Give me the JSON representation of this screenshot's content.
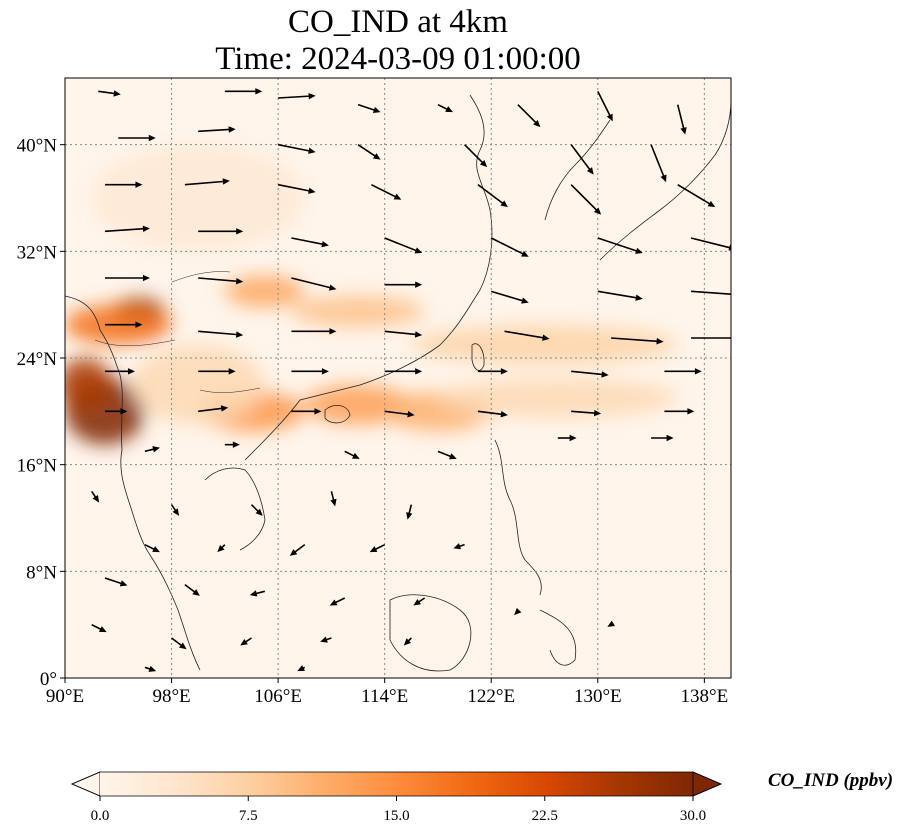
{
  "title": {
    "line1": "CO_IND at 4km",
    "line2": "Time: 2024-03-09 01:00:00"
  },
  "map": {
    "lon_range": [
      90,
      140
    ],
    "lat_range": [
      0,
      45
    ],
    "lon_ticks": [
      {
        "value": 90,
        "label": "90°E"
      },
      {
        "value": 98,
        "label": "98°E"
      },
      {
        "value": 106,
        "label": "106°E"
      },
      {
        "value": 114,
        "label": "114°E"
      },
      {
        "value": 122,
        "label": "122°E"
      },
      {
        "value": 130,
        "label": "130°E"
      },
      {
        "value": 138,
        "label": "138°E"
      }
    ],
    "lat_ticks": [
      {
        "value": 0,
        "label": "0°"
      },
      {
        "value": 8,
        "label": "8°N"
      },
      {
        "value": 16,
        "label": "16°N"
      },
      {
        "value": 24,
        "label": "24°N"
      },
      {
        "value": 32,
        "label": "32°N"
      },
      {
        "value": 40,
        "label": "40°N"
      }
    ],
    "gridlines": true,
    "concentration_plumes": [
      {
        "lon": 93.0,
        "lat": 20.0,
        "rx": 3.0,
        "ry": 2.5,
        "value": 30
      },
      {
        "lon": 91.5,
        "lat": 22.0,
        "rx": 2.0,
        "ry": 2.0,
        "value": 26
      },
      {
        "lon": 95.5,
        "lat": 27.5,
        "rx": 2.0,
        "ry": 1.0,
        "value": 30
      },
      {
        "lon": 94.0,
        "lat": 26.5,
        "rx": 4.0,
        "ry": 1.5,
        "value": 18
      },
      {
        "lon": 104.0,
        "lat": 20.0,
        "rx": 4.0,
        "ry": 1.5,
        "value": 14
      },
      {
        "lon": 112.0,
        "lat": 20.5,
        "rx": 4.0,
        "ry": 1.5,
        "value": 13
      },
      {
        "lon": 118.0,
        "lat": 20.0,
        "rx": 4.0,
        "ry": 1.5,
        "value": 11
      },
      {
        "lon": 105.0,
        "lat": 29.0,
        "rx": 3.0,
        "ry": 1.2,
        "value": 12
      },
      {
        "lon": 112.0,
        "lat": 27.5,
        "rx": 5.0,
        "ry": 1.2,
        "value": 9
      },
      {
        "lon": 126.0,
        "lat": 25.0,
        "rx": 10.0,
        "ry": 1.5,
        "value": 7
      },
      {
        "lon": 127.0,
        "lat": 21.0,
        "rx": 9.0,
        "ry": 1.5,
        "value": 6
      },
      {
        "lon": 100.0,
        "lat": 36.0,
        "rx": 8.0,
        "ry": 4.0,
        "value": 3
      },
      {
        "lon": 100.0,
        "lat": 22.0,
        "rx": 5.0,
        "ry": 3.0,
        "value": 6
      }
    ],
    "wind_vectors": [
      {
        "lon": 92.5,
        "lat": 44,
        "u": 3,
        "v": -0.4
      },
      {
        "lon": 102,
        "lat": 44,
        "u": 5,
        "v": 0
      },
      {
        "lon": 106,
        "lat": 43.5,
        "u": 5,
        "v": 0.3
      },
      {
        "lon": 112,
        "lat": 43,
        "u": 3,
        "v": -1
      },
      {
        "lon": 118,
        "lat": 43,
        "u": 2,
        "v": -1
      },
      {
        "lon": 124,
        "lat": 43,
        "u": 3,
        "v": -3
      },
      {
        "lon": 130,
        "lat": 44,
        "u": 2,
        "v": -4
      },
      {
        "lon": 136,
        "lat": 43,
        "u": 1,
        "v": -4
      },
      {
        "lon": 94,
        "lat": 40.5,
        "u": 5,
        "v": 0
      },
      {
        "lon": 100,
        "lat": 41,
        "u": 5,
        "v": 0.3
      },
      {
        "lon": 106,
        "lat": 40,
        "u": 5,
        "v": -1
      },
      {
        "lon": 112,
        "lat": 40,
        "u": 3,
        "v": -2
      },
      {
        "lon": 120,
        "lat": 40,
        "u": 3,
        "v": -3
      },
      {
        "lon": 128,
        "lat": 40,
        "u": 3,
        "v": -4
      },
      {
        "lon": 134,
        "lat": 40,
        "u": 2,
        "v": -5
      },
      {
        "lon": 93,
        "lat": 37,
        "u": 5,
        "v": 0
      },
      {
        "lon": 99,
        "lat": 37,
        "u": 6,
        "v": 0.5
      },
      {
        "lon": 106,
        "lat": 37,
        "u": 5,
        "v": -1
      },
      {
        "lon": 113,
        "lat": 37,
        "u": 4,
        "v": -2
      },
      {
        "lon": 121,
        "lat": 37,
        "u": 4,
        "v": -3
      },
      {
        "lon": 128,
        "lat": 37,
        "u": 4,
        "v": -4
      },
      {
        "lon": 136,
        "lat": 37,
        "u": 5,
        "v": -3
      },
      {
        "lon": 93,
        "lat": 33.5,
        "u": 6,
        "v": 0.4
      },
      {
        "lon": 100,
        "lat": 33.5,
        "u": 6,
        "v": 0
      },
      {
        "lon": 107,
        "lat": 33,
        "u": 5,
        "v": -1
      },
      {
        "lon": 114,
        "lat": 33,
        "u": 5,
        "v": -2
      },
      {
        "lon": 122,
        "lat": 33,
        "u": 5,
        "v": -2.5
      },
      {
        "lon": 130,
        "lat": 33,
        "u": 6,
        "v": -2
      },
      {
        "lon": 137,
        "lat": 33,
        "u": 6,
        "v": -1.5
      },
      {
        "lon": 93,
        "lat": 30,
        "u": 6,
        "v": 0
      },
      {
        "lon": 100,
        "lat": 30,
        "u": 6,
        "v": -0.5
      },
      {
        "lon": 107,
        "lat": 30,
        "u": 6,
        "v": -1.5
      },
      {
        "lon": 114,
        "lat": 29.5,
        "u": 5,
        "v": 0
      },
      {
        "lon": 122,
        "lat": 29,
        "u": 5,
        "v": -1.5
      },
      {
        "lon": 130,
        "lat": 29,
        "u": 6,
        "v": -1
      },
      {
        "lon": 137,
        "lat": 29,
        "u": 7,
        "v": -0.5
      },
      {
        "lon": 93,
        "lat": 26.5,
        "u": 5,
        "v": 0
      },
      {
        "lon": 100,
        "lat": 26,
        "u": 6,
        "v": -0.5
      },
      {
        "lon": 107,
        "lat": 26,
        "u": 6,
        "v": 0
      },
      {
        "lon": 114,
        "lat": 26,
        "u": 5,
        "v": -0.5
      },
      {
        "lon": 123,
        "lat": 26,
        "u": 6,
        "v": -1
      },
      {
        "lon": 131,
        "lat": 25.5,
        "u": 7,
        "v": -0.5
      },
      {
        "lon": 137,
        "lat": 25.5,
        "u": 7,
        "v": 0
      },
      {
        "lon": 93,
        "lat": 23,
        "u": 4,
        "v": 0
      },
      {
        "lon": 100,
        "lat": 23,
        "u": 5,
        "v": 0
      },
      {
        "lon": 107,
        "lat": 23,
        "u": 5,
        "v": 0
      },
      {
        "lon": 114,
        "lat": 23,
        "u": 5,
        "v": 0
      },
      {
        "lon": 121,
        "lat": 23,
        "u": 4,
        "v": 0
      },
      {
        "lon": 128,
        "lat": 23,
        "u": 5,
        "v": -0.5
      },
      {
        "lon": 135,
        "lat": 23,
        "u": 5,
        "v": 0
      },
      {
        "lon": 93,
        "lat": 20,
        "u": 3,
        "v": 0
      },
      {
        "lon": 100,
        "lat": 20,
        "u": 4,
        "v": 0.5
      },
      {
        "lon": 107,
        "lat": 20,
        "u": 4,
        "v": 0
      },
      {
        "lon": 114,
        "lat": 20,
        "u": 4,
        "v": -0.5
      },
      {
        "lon": 121,
        "lat": 20,
        "u": 4,
        "v": -0.5
      },
      {
        "lon": 128,
        "lat": 20,
        "u": 4,
        "v": -0.3
      },
      {
        "lon": 135,
        "lat": 20,
        "u": 4,
        "v": 0
      },
      {
        "lon": 96,
        "lat": 17,
        "u": 2,
        "v": 0.5
      },
      {
        "lon": 102,
        "lat": 17.5,
        "u": 2,
        "v": 0
      },
      {
        "lon": 111,
        "lat": 17,
        "u": 2,
        "v": -1
      },
      {
        "lon": 118,
        "lat": 17,
        "u": 2.5,
        "v": -1
      },
      {
        "lon": 127,
        "lat": 18,
        "u": 2.5,
        "v": 0
      },
      {
        "lon": 134,
        "lat": 18,
        "u": 3,
        "v": 0
      },
      {
        "lon": 92,
        "lat": 14,
        "u": 1,
        "v": -1.5
      },
      {
        "lon": 98,
        "lat": 13,
        "u": 1,
        "v": -1.5
      },
      {
        "lon": 104,
        "lat": 13,
        "u": 1.5,
        "v": -1.5
      },
      {
        "lon": 110,
        "lat": 14,
        "u": 0.5,
        "v": -2
      },
      {
        "lon": 116,
        "lat": 13,
        "u": -0.5,
        "v": -2
      },
      {
        "lon": 96,
        "lat": 10,
        "u": 2,
        "v": -1
      },
      {
        "lon": 102,
        "lat": 10,
        "u": -1,
        "v": -1
      },
      {
        "lon": 108,
        "lat": 10,
        "u": -2,
        "v": -1.5
      },
      {
        "lon": 114,
        "lat": 10,
        "u": -2,
        "v": -1
      },
      {
        "lon": 120,
        "lat": 10,
        "u": -1.5,
        "v": -0.5
      },
      {
        "lon": 93,
        "lat": 7.5,
        "u": 3,
        "v": -1
      },
      {
        "lon": 99,
        "lat": 7,
        "u": 2,
        "v": -1.5
      },
      {
        "lon": 105,
        "lat": 6.5,
        "u": -2,
        "v": -0.5
      },
      {
        "lon": 111,
        "lat": 6,
        "u": -2,
        "v": -1
      },
      {
        "lon": 117,
        "lat": 6,
        "u": -1.5,
        "v": -1
      },
      {
        "lon": 92,
        "lat": 4,
        "u": 2,
        "v": -1
      },
      {
        "lon": 98,
        "lat": 3,
        "u": 2,
        "v": -1.5
      },
      {
        "lon": 104,
        "lat": 3,
        "u": -1.5,
        "v": -1
      },
      {
        "lon": 110,
        "lat": 3,
        "u": -1.5,
        "v": -0.5
      },
      {
        "lon": 116,
        "lat": 3,
        "u": -1,
        "v": -1
      },
      {
        "lon": 124,
        "lat": 5,
        "u": -0.5,
        "v": -0.5
      },
      {
        "lon": 131,
        "lat": 4,
        "u": -0.5,
        "v": -0.3
      },
      {
        "lon": 96,
        "lat": 0.8,
        "u": 1.5,
        "v": -0.5
      },
      {
        "lon": 108,
        "lat": 0.8,
        "u": -1,
        "v": -0.5
      }
    ]
  },
  "colorbar": {
    "label": "CO_IND (ppbv)",
    "min": 0.0,
    "max": 30.0,
    "extend": "both",
    "ticks": [
      {
        "value": 0.0,
        "label": "0.0"
      },
      {
        "value": 7.5,
        "label": "7.5"
      },
      {
        "value": 15.0,
        "label": "15.0"
      },
      {
        "value": 22.5,
        "label": "22.5"
      },
      {
        "value": 30.0,
        "label": "30.0"
      }
    ],
    "colors": [
      "#fff5eb",
      "#fee6ce",
      "#fdd0a2",
      "#fdae6b",
      "#fd8d3c",
      "#f16913",
      "#d94801",
      "#a63603",
      "#7f2704"
    ],
    "under_color": "#fff5eb",
    "over_color": "#7f2704"
  }
}
